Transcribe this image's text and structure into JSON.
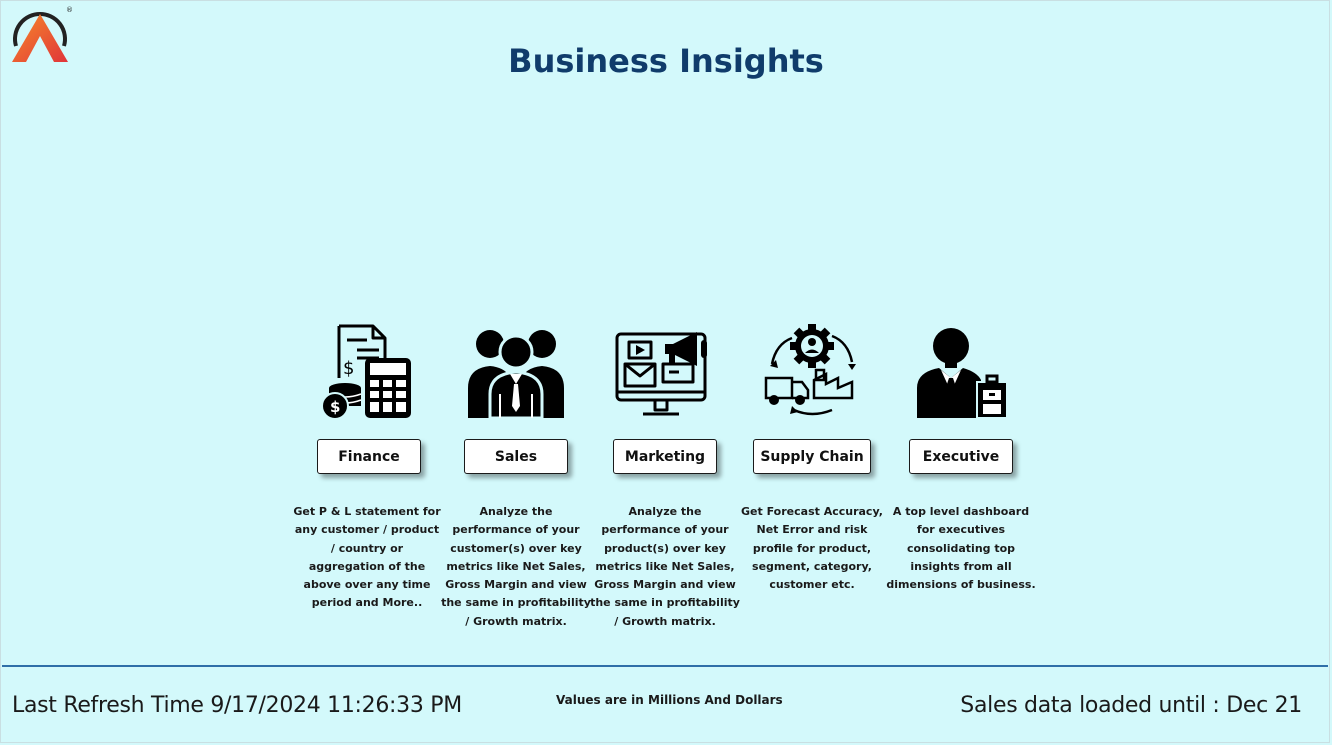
{
  "header": {
    "title": "Business Insights",
    "logo_mark": "®"
  },
  "cards": [
    {
      "label": "Finance",
      "icon": "finance-icon",
      "description": "Get  P & L statement for any customer / product / country or aggregation of the above over any time period and More.."
    },
    {
      "label": "Sales",
      "icon": "team-icon",
      "description": "Analyze the performance of your customer(s) over key metrics like Net Sales, Gross Margin and view the same in profitability / Growth matrix."
    },
    {
      "label": "Marketing",
      "icon": "monitor-megaphone-icon",
      "description": "Analyze the performance of your product(s) over key metrics like Net Sales, Gross Margin and view the same in profitability / Growth matrix."
    },
    {
      "label": "Supply Chain",
      "icon": "truck-factory-cycle-icon",
      "description": "Get Forecast Accuracy, Net Error and risk profile for product, segment, category, customer etc."
    },
    {
      "label": "Executive",
      "icon": "executive-briefcase-icon",
      "description": "A top level dashboard for executives consolidating top insights from all dimensions of business."
    }
  ],
  "footer": {
    "last_refresh": "Last Refresh Time 9/17/2024 11:26:33 PM",
    "units_note": "Values are in Millions And Dollars",
    "data_loaded": "Sales data loaded until : Dec 21"
  },
  "colors": {
    "background": "#d3f9fb",
    "title": "#103c6b",
    "divider": "#2f6fa8",
    "logo_orange": "#f26a2e",
    "logo_red": "#e0353a"
  }
}
